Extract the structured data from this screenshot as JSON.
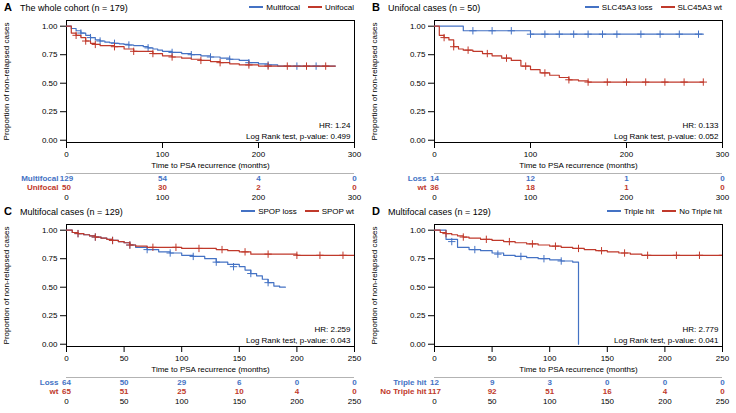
{
  "chart_data": [
    {
      "type": "step",
      "panel_label": "A",
      "title": "The whole cohort (n = 179)",
      "x_label": "Time to PSA recurrence (months)",
      "y_label": "Proportion of non-relapsed cases",
      "xlim": [
        0,
        300
      ],
      "xticks": [
        0,
        100,
        200,
        300
      ],
      "ylim": [
        -0.02,
        1.05
      ],
      "yticks": [
        {
          "value": 0.0,
          "label": "0.00"
        },
        0.25,
        {
          "value": 0.5,
          "label": "0.50"
        },
        0.75,
        {
          "value": 1.0,
          "label": "1.00"
        }
      ],
      "legend": "upper right",
      "annotations": [
        {
          "text": "HR: 1.24"
        },
        {
          "text": "Log Rank test, p-value: 0.499"
        }
      ],
      "series": [
        {
          "name": "Multifocal",
          "color": "#4472c4",
          "x": [
            0,
            5,
            10,
            15,
            20,
            25,
            30,
            35,
            40,
            45,
            50,
            55,
            60,
            65,
            70,
            75,
            80,
            85,
            90,
            95,
            100,
            110,
            120,
            130,
            140,
            150,
            160,
            170,
            180,
            190,
            200,
            210,
            220,
            230,
            240,
            250,
            260,
            270,
            280
          ],
          "values": [
            1.0,
            0.98,
            0.96,
            0.94,
            0.92,
            0.9,
            0.88,
            0.87,
            0.86,
            0.855,
            0.85,
            0.845,
            0.84,
            0.835,
            0.83,
            0.83,
            0.82,
            0.81,
            0.8,
            0.79,
            0.78,
            0.77,
            0.76,
            0.75,
            0.74,
            0.73,
            0.72,
            0.71,
            0.7,
            0.68,
            0.67,
            0.66,
            0.65,
            0.65,
            0.65,
            0.65,
            0.65,
            0.65,
            0.65
          ],
          "censor_x": [
            15,
            25,
            35,
            50,
            65,
            85,
            110,
            130,
            150,
            170,
            190,
            210,
            240,
            260
          ],
          "censor_values": [
            0.94,
            0.9,
            0.87,
            0.85,
            0.835,
            0.81,
            0.77,
            0.75,
            0.73,
            0.71,
            0.68,
            0.66,
            0.65,
            0.65
          ]
        },
        {
          "name": "Unifocal",
          "color": "#c0392b",
          "x": [
            0,
            5,
            10,
            15,
            20,
            25,
            30,
            35,
            40,
            50,
            55,
            60,
            70,
            80,
            90,
            100,
            110,
            120,
            130,
            140,
            150,
            160,
            170,
            180,
            190,
            200,
            210,
            220,
            230,
            240,
            250,
            260,
            270,
            280
          ],
          "values": [
            1.0,
            0.94,
            0.92,
            0.9,
            0.87,
            0.85,
            0.84,
            0.83,
            0.83,
            0.82,
            0.82,
            0.8,
            0.78,
            0.78,
            0.76,
            0.74,
            0.73,
            0.72,
            0.71,
            0.7,
            0.69,
            0.68,
            0.67,
            0.66,
            0.66,
            0.65,
            0.65,
            0.65,
            0.65,
            0.65,
            0.65,
            0.65,
            0.65,
            0.65
          ],
          "censor_x": [
            10,
            20,
            30,
            50,
            70,
            90,
            110,
            140,
            160,
            190,
            210,
            230,
            250,
            270
          ],
          "censor_values": [
            0.92,
            0.87,
            0.84,
            0.82,
            0.78,
            0.76,
            0.73,
            0.7,
            0.68,
            0.66,
            0.65,
            0.65,
            0.65,
            0.65
          ]
        }
      ],
      "at_risk": {
        "x": [
          0,
          100,
          200,
          300
        ],
        "rows": [
          {
            "name": "Multifocal",
            "color": "#4472c4",
            "values": [
              129,
              54,
              4,
              0
            ]
          },
          {
            "name": "Unifocal",
            "color": "#c0392b",
            "values": [
              50,
              30,
              2,
              0
            ]
          }
        ]
      }
    },
    {
      "type": "step",
      "panel_label": "B",
      "title": "Unifocal cases (n = 50)",
      "x_label": "Time to PSA recurrence (months)",
      "y_label": "Proportion of non-relapsed cases",
      "xlim": [
        0,
        300
      ],
      "xticks": [
        0,
        100,
        200,
        300
      ],
      "ylim": [
        -0.02,
        1.05
      ],
      "yticks": [
        {
          "value": 0.0,
          "label": "0.00"
        },
        0.25,
        {
          "value": 0.5,
          "label": "0.50"
        },
        0.75,
        {
          "value": 1.0,
          "label": "1.00"
        }
      ],
      "legend": "upper right",
      "annotations": [
        {
          "text": "HR: 0.133"
        },
        {
          "text": "Log Rank test, p-value: 0.052"
        }
      ],
      "series": [
        {
          "name": "SLC45A3 loss",
          "color": "#4472c4",
          "x": [
            0,
            10,
            20,
            30,
            40,
            50,
            60,
            70,
            80,
            90,
            100,
            110,
            120,
            130,
            140,
            150,
            160,
            170,
            180,
            190,
            200,
            210,
            220,
            230,
            240,
            250,
            260,
            270,
            280
          ],
          "values": [
            1.0,
            1.0,
            1.0,
            0.96,
            0.96,
            0.96,
            0.96,
            0.96,
            0.96,
            0.96,
            0.93,
            0.93,
            0.93,
            0.93,
            0.93,
            0.93,
            0.93,
            0.93,
            0.93,
            0.93,
            0.93,
            0.93,
            0.93,
            0.93,
            0.93,
            0.93,
            0.93,
            0.93,
            0.93
          ],
          "censor_x": [
            40,
            60,
            80,
            100,
            115,
            130,
            145,
            160,
            175,
            190,
            215,
            235,
            255,
            275
          ],
          "censor_values": [
            0.96,
            0.96,
            0.96,
            0.93,
            0.93,
            0.93,
            0.93,
            0.93,
            0.93,
            0.93,
            0.93,
            0.93,
            0.93,
            0.93
          ]
        },
        {
          "name": "SLC45A3 wt",
          "color": "#c0392b",
          "x": [
            0,
            5,
            10,
            15,
            20,
            25,
            30,
            40,
            50,
            60,
            70,
            80,
            90,
            100,
            110,
            120,
            130,
            140,
            150,
            160,
            170,
            180,
            190,
            200,
            210,
            220,
            230,
            240,
            250,
            260,
            270,
            280
          ],
          "values": [
            1.0,
            0.92,
            0.9,
            0.88,
            0.82,
            0.8,
            0.79,
            0.78,
            0.76,
            0.74,
            0.72,
            0.7,
            0.65,
            0.62,
            0.59,
            0.57,
            0.55,
            0.53,
            0.52,
            0.51,
            0.51,
            0.51,
            0.51,
            0.51,
            0.51,
            0.51,
            0.51,
            0.51,
            0.51,
            0.51,
            0.51,
            0.51
          ],
          "censor_x": [
            10,
            20,
            35,
            55,
            75,
            95,
            115,
            140,
            160,
            180,
            200,
            220,
            240,
            260,
            280
          ],
          "censor_values": [
            0.9,
            0.82,
            0.79,
            0.76,
            0.72,
            0.65,
            0.59,
            0.53,
            0.51,
            0.51,
            0.51,
            0.51,
            0.51,
            0.51,
            0.51
          ]
        }
      ],
      "at_risk": {
        "x": [
          0,
          100,
          200,
          300
        ],
        "rows": [
          {
            "name": "Loss",
            "color": "#4472c4",
            "values": [
              14,
              12,
              1,
              0
            ]
          },
          {
            "name": "wt",
            "color": "#c0392b",
            "values": [
              36,
              18,
              1,
              0
            ]
          }
        ]
      }
    },
    {
      "type": "step",
      "panel_label": "C",
      "title": "Multifocal cases (n = 129)",
      "x_label": "Time to PSA recurrence (months)",
      "y_label": "Proportion of non-relapsed cases",
      "xlim": [
        0,
        250
      ],
      "xticks": [
        0,
        50,
        100,
        150,
        200,
        250
      ],
      "ylim": [
        -0.02,
        1.05
      ],
      "yticks": [
        {
          "value": 0.0,
          "label": "0.00"
        },
        0.25,
        {
          "value": 0.5,
          "label": "0.50"
        },
        0.75,
        {
          "value": 1.0,
          "label": "1.00"
        }
      ],
      "legend": "upper right",
      "annotations": [
        {
          "text": "HR: 2.259"
        },
        {
          "text": "Log Rank test, p-value: 0.043"
        }
      ],
      "series": [
        {
          "name": "SPOP loss",
          "color": "#4472c4",
          "x": [
            0,
            5,
            10,
            15,
            20,
            25,
            30,
            35,
            40,
            45,
            50,
            55,
            60,
            70,
            80,
            90,
            100,
            110,
            120,
            130,
            140,
            150,
            155,
            160,
            165,
            170,
            175,
            180,
            185,
            190
          ],
          "values": [
            1.0,
            0.98,
            0.97,
            0.96,
            0.95,
            0.94,
            0.93,
            0.92,
            0.91,
            0.9,
            0.89,
            0.87,
            0.85,
            0.83,
            0.81,
            0.8,
            0.78,
            0.77,
            0.75,
            0.72,
            0.7,
            0.68,
            0.65,
            0.62,
            0.6,
            0.57,
            0.54,
            0.51,
            0.5,
            0.5
          ],
          "censor_x": [
            10,
            25,
            40,
            55,
            70,
            90,
            110,
            130,
            145,
            160,
            175
          ],
          "censor_values": [
            0.97,
            0.94,
            0.91,
            0.87,
            0.83,
            0.8,
            0.77,
            0.72,
            0.68,
            0.62,
            0.54
          ]
        },
        {
          "name": "SPOP wt",
          "color": "#c0392b",
          "x": [
            0,
            5,
            10,
            15,
            20,
            25,
            30,
            35,
            40,
            45,
            50,
            55,
            60,
            70,
            80,
            90,
            100,
            110,
            120,
            130,
            140,
            150,
            160,
            170,
            180,
            190,
            200,
            210,
            220,
            230,
            240,
            250
          ],
          "values": [
            1.0,
            0.98,
            0.97,
            0.96,
            0.95,
            0.94,
            0.93,
            0.92,
            0.91,
            0.9,
            0.89,
            0.87,
            0.86,
            0.85,
            0.85,
            0.85,
            0.84,
            0.84,
            0.84,
            0.83,
            0.82,
            0.81,
            0.79,
            0.79,
            0.79,
            0.79,
            0.78,
            0.78,
            0.78,
            0.78,
            0.78,
            0.78
          ],
          "censor_x": [
            10,
            25,
            40,
            55,
            75,
            95,
            115,
            135,
            155,
            175,
            200,
            220,
            240
          ],
          "censor_values": [
            0.97,
            0.94,
            0.91,
            0.87,
            0.85,
            0.85,
            0.84,
            0.83,
            0.81,
            0.79,
            0.78,
            0.78,
            0.78
          ]
        }
      ],
      "at_risk": {
        "x": [
          0,
          50,
          100,
          150,
          200,
          250
        ],
        "rows": [
          {
            "name": "Loss",
            "color": "#4472c4",
            "values": [
              64,
              50,
              29,
              6,
              0,
              0
            ]
          },
          {
            "name": "wt",
            "color": "#c0392b",
            "values": [
              65,
              51,
              25,
              10,
              4,
              0
            ]
          }
        ]
      }
    },
    {
      "type": "step",
      "panel_label": "D",
      "title": "Multifocal cases (n = 129)",
      "x_label": "Time to PSA recurrence (months)",
      "y_label": "Proportion of non-relapsed cases",
      "xlim": [
        0,
        250
      ],
      "xticks": [
        0,
        50,
        100,
        150,
        200,
        250
      ],
      "ylim": [
        -0.02,
        1.05
      ],
      "yticks": [
        {
          "value": 0.0,
          "label": "0.00"
        },
        0.25,
        {
          "value": 0.5,
          "label": "0.50"
        },
        0.75,
        {
          "value": 1.0,
          "label": "1.00"
        }
      ],
      "legend": "upper right",
      "annotations": [
        {
          "text": "HR: 2.779"
        },
        {
          "text": "Log Rank test, p-value: 0.041"
        }
      ],
      "series": [
        {
          "name": "Triple hit",
          "color": "#4472c4",
          "x": [
            0,
            10,
            20,
            30,
            40,
            50,
            60,
            70,
            80,
            90,
            100,
            110,
            120,
            125
          ],
          "values": [
            1.0,
            0.92,
            0.85,
            0.83,
            0.82,
            0.8,
            0.78,
            0.77,
            0.76,
            0.75,
            0.74,
            0.73,
            0.72,
            0.0
          ],
          "censor_x": [
            15,
            35,
            55,
            75,
            95,
            110
          ],
          "censor_values": [
            0.9,
            0.83,
            0.79,
            0.77,
            0.75,
            0.73
          ]
        },
        {
          "name": "No Triple hit",
          "color": "#c0392b",
          "x": [
            0,
            5,
            10,
            15,
            20,
            25,
            30,
            40,
            50,
            60,
            70,
            80,
            90,
            100,
            110,
            120,
            130,
            140,
            150,
            160,
            170,
            180,
            190,
            200,
            210,
            220,
            230,
            240,
            250
          ],
          "values": [
            1.0,
            0.98,
            0.97,
            0.96,
            0.95,
            0.94,
            0.93,
            0.92,
            0.91,
            0.9,
            0.89,
            0.88,
            0.87,
            0.86,
            0.85,
            0.84,
            0.83,
            0.82,
            0.81,
            0.8,
            0.79,
            0.78,
            0.78,
            0.78,
            0.78,
            0.78,
            0.78,
            0.78,
            0.78
          ],
          "censor_x": [
            10,
            25,
            45,
            65,
            85,
            105,
            125,
            145,
            165,
            185,
            210,
            230,
            250
          ],
          "censor_values": [
            0.97,
            0.94,
            0.92,
            0.9,
            0.88,
            0.86,
            0.84,
            0.82,
            0.8,
            0.78,
            0.78,
            0.78,
            0.78
          ]
        }
      ],
      "at_risk": {
        "x": [
          0,
          50,
          100,
          150,
          200,
          250
        ],
        "rows": [
          {
            "name": "Triple hit",
            "color": "#4472c4",
            "values": [
              12,
              9,
              3,
              0,
              0,
              0
            ]
          },
          {
            "name": "No Triple hit",
            "color": "#c0392b",
            "values": [
              117,
              92,
              51,
              16,
              4,
              0
            ]
          }
        ]
      }
    }
  ]
}
